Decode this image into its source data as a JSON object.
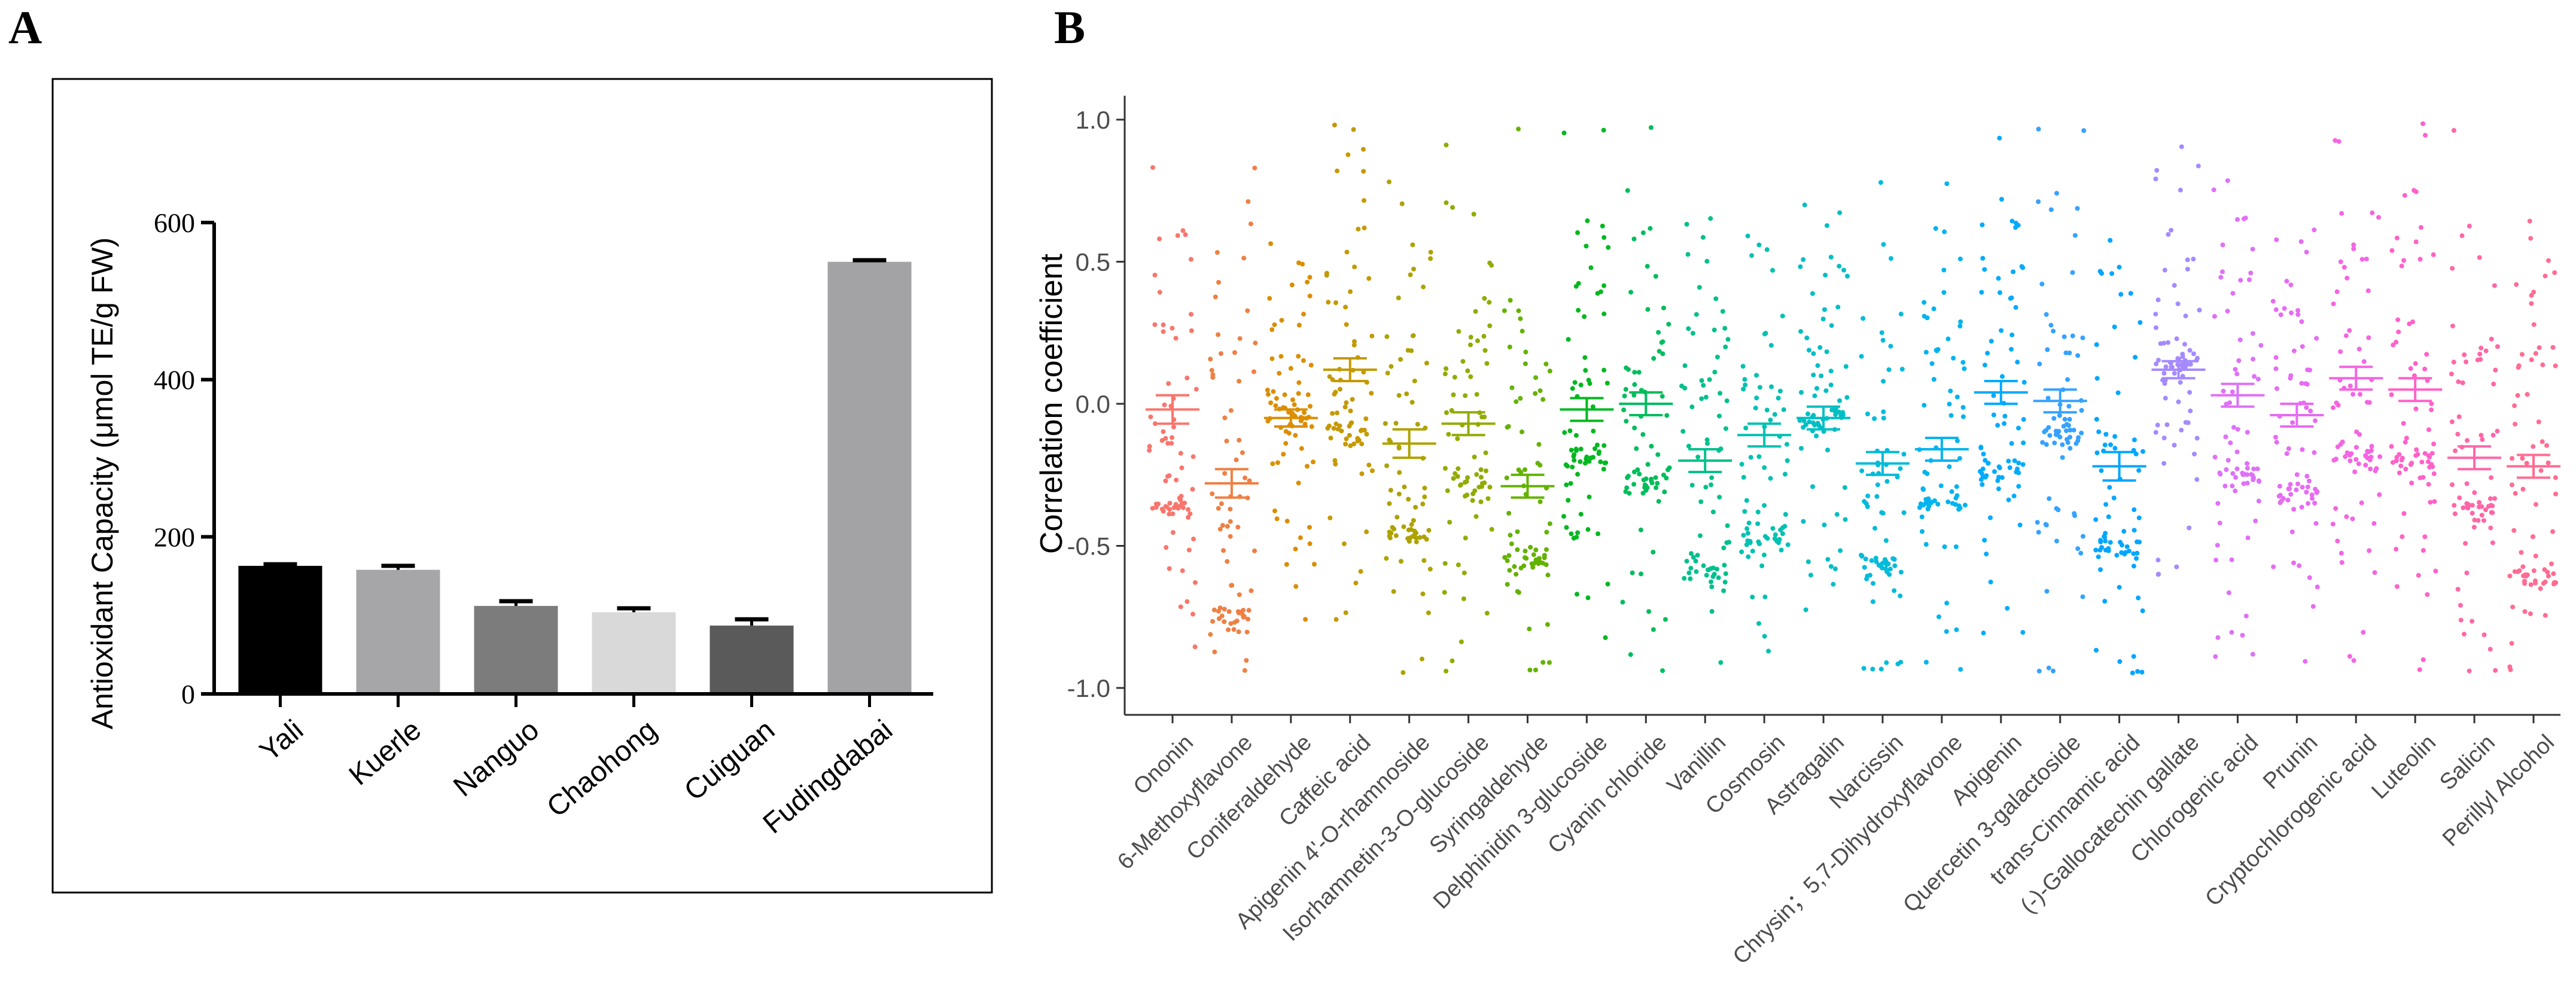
{
  "panels": [
    {
      "label": "A"
    },
    {
      "label": "B"
    }
  ],
  "chart_data": [
    {
      "type": "bar",
      "panel": "A",
      "title": "",
      "xlabel": "",
      "ylabel": "Antioxidant Capacity (μmol TE/g FW)",
      "ylim": [
        0,
        600
      ],
      "yticks": [
        "0",
        "200",
        "400",
        "600"
      ],
      "categories": [
        "Yali",
        "Kuerle",
        "Nanguo",
        "Chaohong",
        "Cuiguan",
        "Fudingdabai"
      ],
      "values": [
        163,
        158,
        112,
        104,
        87,
        550
      ],
      "errors": [
        2,
        5,
        6,
        5,
        8,
        2
      ],
      "colors": [
        "#000000",
        "#a6a6a8",
        "#7c7c7c",
        "#d9d9d9",
        "#5a5a5a",
        "#a3a3a6"
      ]
    },
    {
      "type": "scatter",
      "panel": "B",
      "title": "",
      "xlabel": "",
      "ylabel": "Correlation coefficient",
      "ylim": [
        -1.0,
        1.0
      ],
      "yticks": [
        "-1.0",
        "-0.5",
        "0.0",
        "0.5",
        "1.0"
      ],
      "categories": [
        "Ononin",
        "6-Methoxyflavone",
        "Coniferaldehyde",
        "Caffeic acid",
        "Apigenin 4'-O-rhamnoside",
        "Isorhamnetin-3-O-glucoside",
        "Syringaldehyde",
        "Delphinidin 3-glucoside",
        "Cyanin chloride",
        "Vanillin",
        "Cosmosin",
        "Astragalin",
        "Narcissin",
        "Chrysin；5,7-Dihydroxyflavone",
        "Apigenin",
        "Quercetin 3-galactoside",
        "trans-Cinnamic acid",
        "(-)-Gallocatechin gallate",
        "Chlorogenic acid",
        "Prunin",
        "Cryptochlorogenic acid",
        "Luteolin",
        "Salicin",
        "Perillyl Alcohol"
      ],
      "means": [
        -0.02,
        -0.28,
        -0.05,
        0.12,
        -0.14,
        -0.07,
        -0.29,
        -0.02,
        0.0,
        -0.2,
        -0.11,
        -0.05,
        -0.21,
        -0.16,
        0.04,
        0.01,
        -0.22,
        0.12,
        0.03,
        -0.04,
        0.09,
        0.05,
        -0.19,
        -0.22
      ],
      "sem": [
        0.05,
        0.05,
        0.03,
        0.04,
        0.05,
        0.04,
        0.04,
        0.04,
        0.04,
        0.04,
        0.04,
        0.04,
        0.04,
        0.04,
        0.04,
        0.04,
        0.05,
        0.03,
        0.04,
        0.04,
        0.04,
        0.04,
        0.04,
        0.04
      ],
      "clusters": [
        -0.36,
        -0.75,
        -0.04,
        -0.09,
        -0.45,
        -0.28,
        -0.55,
        -0.2,
        -0.28,
        -0.6,
        -0.48,
        -0.06,
        -0.57,
        -0.35,
        -0.23,
        -0.12,
        -0.5,
        0.15,
        -0.26,
        -0.31,
        -0.18,
        -0.2,
        -0.37,
        -0.62
      ],
      "colors": [
        "#F8766D",
        "#EE8044",
        "#DB8E00",
        "#C59900",
        "#AEA200",
        "#93AA00",
        "#64B200",
        "#00B81F",
        "#00BD5C",
        "#00C08D",
        "#00C1B2",
        "#00BFC4",
        "#00BBDA",
        "#00B4EF",
        "#00ABFD",
        "#35A2FF",
        "#00A6FF",
        "#A58AFF",
        "#DF70F8",
        "#E76BF3",
        "#F564E3",
        "#FF61C9",
        "#FF66A8",
        "#FF6C92"
      ]
    }
  ]
}
